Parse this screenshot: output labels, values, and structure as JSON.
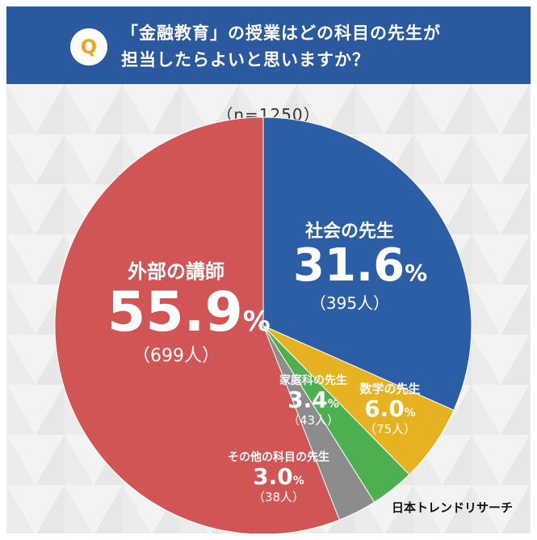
{
  "question": {
    "badge": "Q",
    "line1": "「金融教育」の授業はどの科目の先生が",
    "line2": "担当したらよいと思いますか？"
  },
  "sample_size": "（n=1250）",
  "credit": "日本トレンドリサーチ",
  "colors": {
    "header_bg": "#2b59a0",
    "badge_text": "#e9a81e",
    "social": "#2c5ea6",
    "math": "#e6b221",
    "home_ec": "#4caf50",
    "other": "#8c8c8c",
    "external": "#d25555"
  },
  "chart_data": {
    "type": "pie",
    "title": "「金融教育」の授業はどの科目の先生が担当したらよいと思いますか？",
    "n": 1250,
    "slices": [
      {
        "label": "社会の先生",
        "percent": 31.6,
        "count": "（395人）",
        "pct_text": "31.6",
        "color": "#2c5ea6"
      },
      {
        "label": "数学の先生",
        "percent": 6.0,
        "count": "（75人）",
        "pct_text": "6.0",
        "color": "#e6b221"
      },
      {
        "label": "家庭科の先生",
        "percent": 3.4,
        "count": "（43人）",
        "pct_text": "3.4",
        "color": "#4caf50"
      },
      {
        "label": "その他の科目の先生",
        "percent": 3.0,
        "count": "（38人）",
        "pct_text": "3.0",
        "color": "#8c8c8c"
      },
      {
        "label": "外部の講師",
        "percent": 55.9,
        "count": "（699人）",
        "pct_text": "55.9",
        "color": "#d25555"
      }
    ],
    "percent_sign": "%"
  }
}
